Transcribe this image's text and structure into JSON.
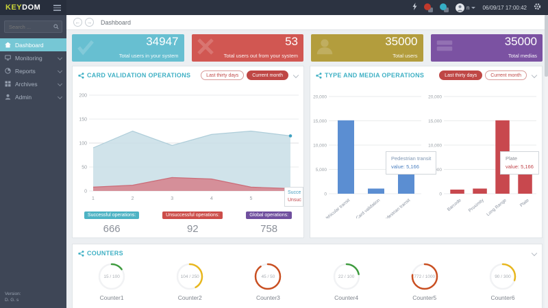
{
  "app": {
    "brand_key": "KEY",
    "brand_dom": "DOM",
    "username": "n",
    "datetime": "06/09/17 17:00:42"
  },
  "theme": {
    "accent_teal": "#3fb0c4",
    "accent_red": "#bf4745",
    "sidebar_bg": "#3e4656",
    "topbar_bg": "#2c3341",
    "active_nav_bg": "#76c7d5"
  },
  "sidebar": {
    "search_placeholder": "Search ...",
    "items": [
      {
        "label": "Dashboard",
        "active": true
      },
      {
        "label": "Monitoring"
      },
      {
        "label": "Reports"
      },
      {
        "label": "Archives"
      },
      {
        "label": "Admin"
      }
    ],
    "version_label": "Version:",
    "version_value": "D. G. s"
  },
  "breadcrumb": {
    "title": "Dashboard"
  },
  "stat_cards": [
    {
      "value": "34947",
      "label": "Total users in your system",
      "color": "#67bfd1",
      "icon": "check-icon"
    },
    {
      "value": "53",
      "label": "Total users out from your system",
      "color": "#d15752",
      "icon": "cross-icon"
    },
    {
      "value": "35000",
      "label": "Total users",
      "color": "#b39d3d",
      "icon": "user-icon"
    },
    {
      "value": "35000",
      "label": "Total medias",
      "color": "#7b52a2",
      "icon": "cards-icon"
    }
  ],
  "panels": {
    "card_validation": {
      "title": "CARD VALIDATION OPERATIONS",
      "buttons": [
        {
          "label": "Last thirty days",
          "style": "outline"
        },
        {
          "label": "Current month",
          "style": "solid"
        }
      ],
      "edge_tooltip": [
        "Succe",
        "Unsuc"
      ],
      "stats": [
        {
          "label": "Successful operations:",
          "value": "666",
          "color": "#4db3c4"
        },
        {
          "label": "Unsuccessful operations:",
          "value": "92",
          "color": "#cc4d49"
        },
        {
          "label": "Global operations:",
          "value": "758",
          "color": "#6f4f9e"
        }
      ]
    },
    "type_media": {
      "title": "TYPE AND MEDIA OPERATIONS",
      "buttons": [
        {
          "label": "Last thirty days",
          "style": "solid"
        },
        {
          "label": "Current month",
          "style": "outline"
        }
      ]
    },
    "counters": {
      "title": "COUNTERS"
    }
  },
  "chart_data": [
    {
      "type": "area",
      "title": "CARD VALIDATION OPERATIONS",
      "x": [
        1,
        2,
        3,
        4,
        5,
        6
      ],
      "ylim": [
        0,
        200
      ],
      "yticks": [
        0,
        50,
        100,
        150,
        200
      ],
      "grid": true,
      "series": [
        {
          "name": "Successful operations",
          "values": [
            90,
            125,
            95,
            118,
            125,
            115
          ],
          "fill": "#c8dee6",
          "stroke": "#aecdd9",
          "dot": "#3ea0c0"
        },
        {
          "name": "Unsuccessful operations",
          "values": [
            8,
            12,
            28,
            25,
            8,
            5
          ],
          "fill": "#d6808b",
          "stroke": "#cb6b77",
          "dot": "#c0444a"
        }
      ]
    },
    {
      "type": "bar",
      "categories": [
        "Vehicular transit",
        "Card validation",
        "Pedestrian transit"
      ],
      "values": [
        15100,
        1050,
        5166
      ],
      "color": "#5b8ed2",
      "ylim": [
        0,
        20000
      ],
      "ytick_labels": [
        "0",
        "5,000",
        "10,000",
        "15,000",
        "20,000"
      ],
      "tooltip": {
        "title": "Pedestrian transit",
        "value_label": "value:",
        "value": "5,166",
        "title_color": "#7e96b3",
        "value_color": "#4a7fc1"
      }
    },
    {
      "type": "bar",
      "categories": [
        "Barcode",
        "Proximity",
        "Long Range",
        "Plate"
      ],
      "values": [
        850,
        1050,
        15100,
        5166
      ],
      "color": "#c8484e",
      "ylim": [
        0,
        20000
      ],
      "ytick_labels": [
        "0",
        "5,000",
        "10,000",
        "15,000",
        "20,000"
      ],
      "tooltip": {
        "title": "Plate",
        "value_label": "value:",
        "value": "5,166",
        "title_color": "#8b8f96",
        "value_color": "#c0444a"
      }
    }
  ],
  "counters": [
    {
      "label": "Counter1",
      "value": "15 / 100",
      "percent": 15,
      "color": "#3e9b3e"
    },
    {
      "label": "Counter2",
      "value": "104 / 250",
      "percent": 42,
      "color": "#e8b71e"
    },
    {
      "label": "Counter3",
      "value": "45 / 50",
      "percent": 90,
      "color": "#c94f21"
    },
    {
      "label": "Counter4",
      "value": "22 / 100",
      "percent": 22,
      "color": "#3e9b3e"
    },
    {
      "label": "Counter5",
      "value": "772 / 1000",
      "percent": 77,
      "color": "#c94f21"
    },
    {
      "label": "Counter6",
      "value": "90 / 300",
      "percent": 30,
      "color": "#e8b71e"
    }
  ]
}
